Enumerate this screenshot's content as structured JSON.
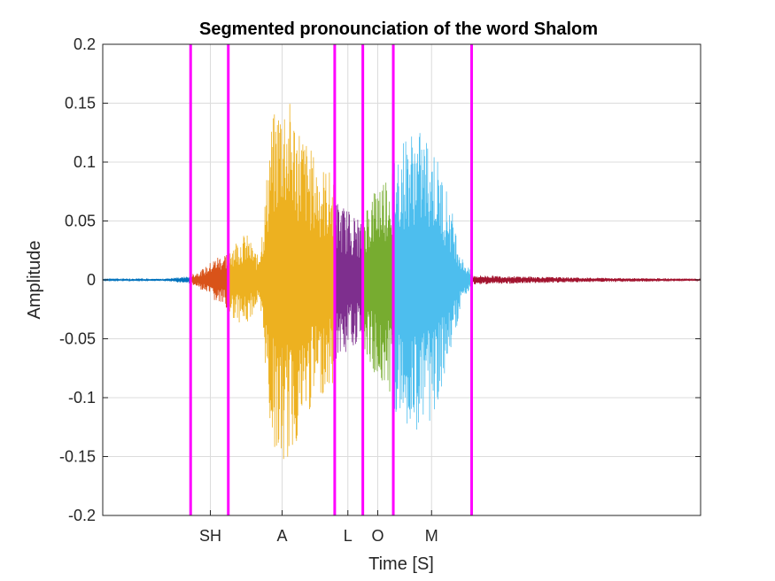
{
  "chart_data": {
    "type": "line",
    "title": "Segmented pronounciation of the word Shalom",
    "xlabel": "Time [S]",
    "ylabel": "Amplitude",
    "xlim": [
      0,
      1
    ],
    "ylim": [
      -0.2,
      0.2
    ],
    "grid": true,
    "y_ticks": [
      -0.2,
      -0.15,
      -0.1,
      -0.05,
      0,
      0.05,
      0.1,
      0.15,
      0.2
    ],
    "y_tick_labels": [
      "-0.2",
      "-0.15",
      "-0.1",
      "-0.05",
      "0",
      "0.05",
      "0.1",
      "0.15",
      "0.2"
    ],
    "x_ticks": [
      0.18,
      0.3,
      0.41,
      0.46,
      0.55
    ],
    "x_tick_labels": [
      "SH",
      "A",
      "L",
      "O",
      "M"
    ],
    "boundaries": [
      0.147,
      0.21,
      0.388,
      0.435,
      0.486,
      0.617
    ],
    "boundary_color": "#ff00ff",
    "segments": [
      {
        "label": "",
        "start": 0.0,
        "end": 0.147,
        "color": "#0072bd",
        "envelope": [
          [
            0.0,
            0.0005
          ],
          [
            0.1,
            0.001
          ],
          [
            0.145,
            0.003
          ]
        ]
      },
      {
        "label": "SH",
        "start": 0.147,
        "end": 0.21,
        "color": "#d95319",
        "envelope": [
          [
            0.147,
            0.004
          ],
          [
            0.17,
            0.01
          ],
          [
            0.19,
            0.02
          ],
          [
            0.21,
            0.025
          ]
        ]
      },
      {
        "label": "A",
        "start": 0.21,
        "end": 0.388,
        "color": "#edb120",
        "envelope": [
          [
            0.21,
            0.03
          ],
          [
            0.24,
            0.04
          ],
          [
            0.26,
            0.02
          ],
          [
            0.27,
            0.06
          ],
          [
            0.28,
            0.13
          ],
          [
            0.3,
            0.165
          ],
          [
            0.32,
            0.145
          ],
          [
            0.34,
            0.12
          ],
          [
            0.36,
            0.1
          ],
          [
            0.388,
            0.09
          ]
        ]
      },
      {
        "label": "L",
        "start": 0.388,
        "end": 0.435,
        "color": "#7e2f8e",
        "envelope": [
          [
            0.388,
            0.07
          ],
          [
            0.41,
            0.06
          ],
          [
            0.435,
            0.05
          ]
        ]
      },
      {
        "label": "O",
        "start": 0.435,
        "end": 0.486,
        "color": "#77ac30",
        "envelope": [
          [
            0.435,
            0.06
          ],
          [
            0.46,
            0.085
          ],
          [
            0.486,
            0.1
          ]
        ]
      },
      {
        "label": "M",
        "start": 0.486,
        "end": 0.617,
        "color": "#4dbeee",
        "envelope": [
          [
            0.486,
            0.11
          ],
          [
            0.5,
            0.12
          ],
          [
            0.52,
            0.13
          ],
          [
            0.55,
            0.12
          ],
          [
            0.58,
            0.07
          ],
          [
            0.6,
            0.02
          ],
          [
            0.617,
            0.006
          ]
        ]
      },
      {
        "label": "",
        "start": 0.617,
        "end": 1.0,
        "color": "#a2142f",
        "envelope": [
          [
            0.617,
            0.004
          ],
          [
            0.7,
            0.003
          ],
          [
            0.8,
            0.002
          ],
          [
            1.0,
            0.001
          ]
        ]
      }
    ]
  }
}
